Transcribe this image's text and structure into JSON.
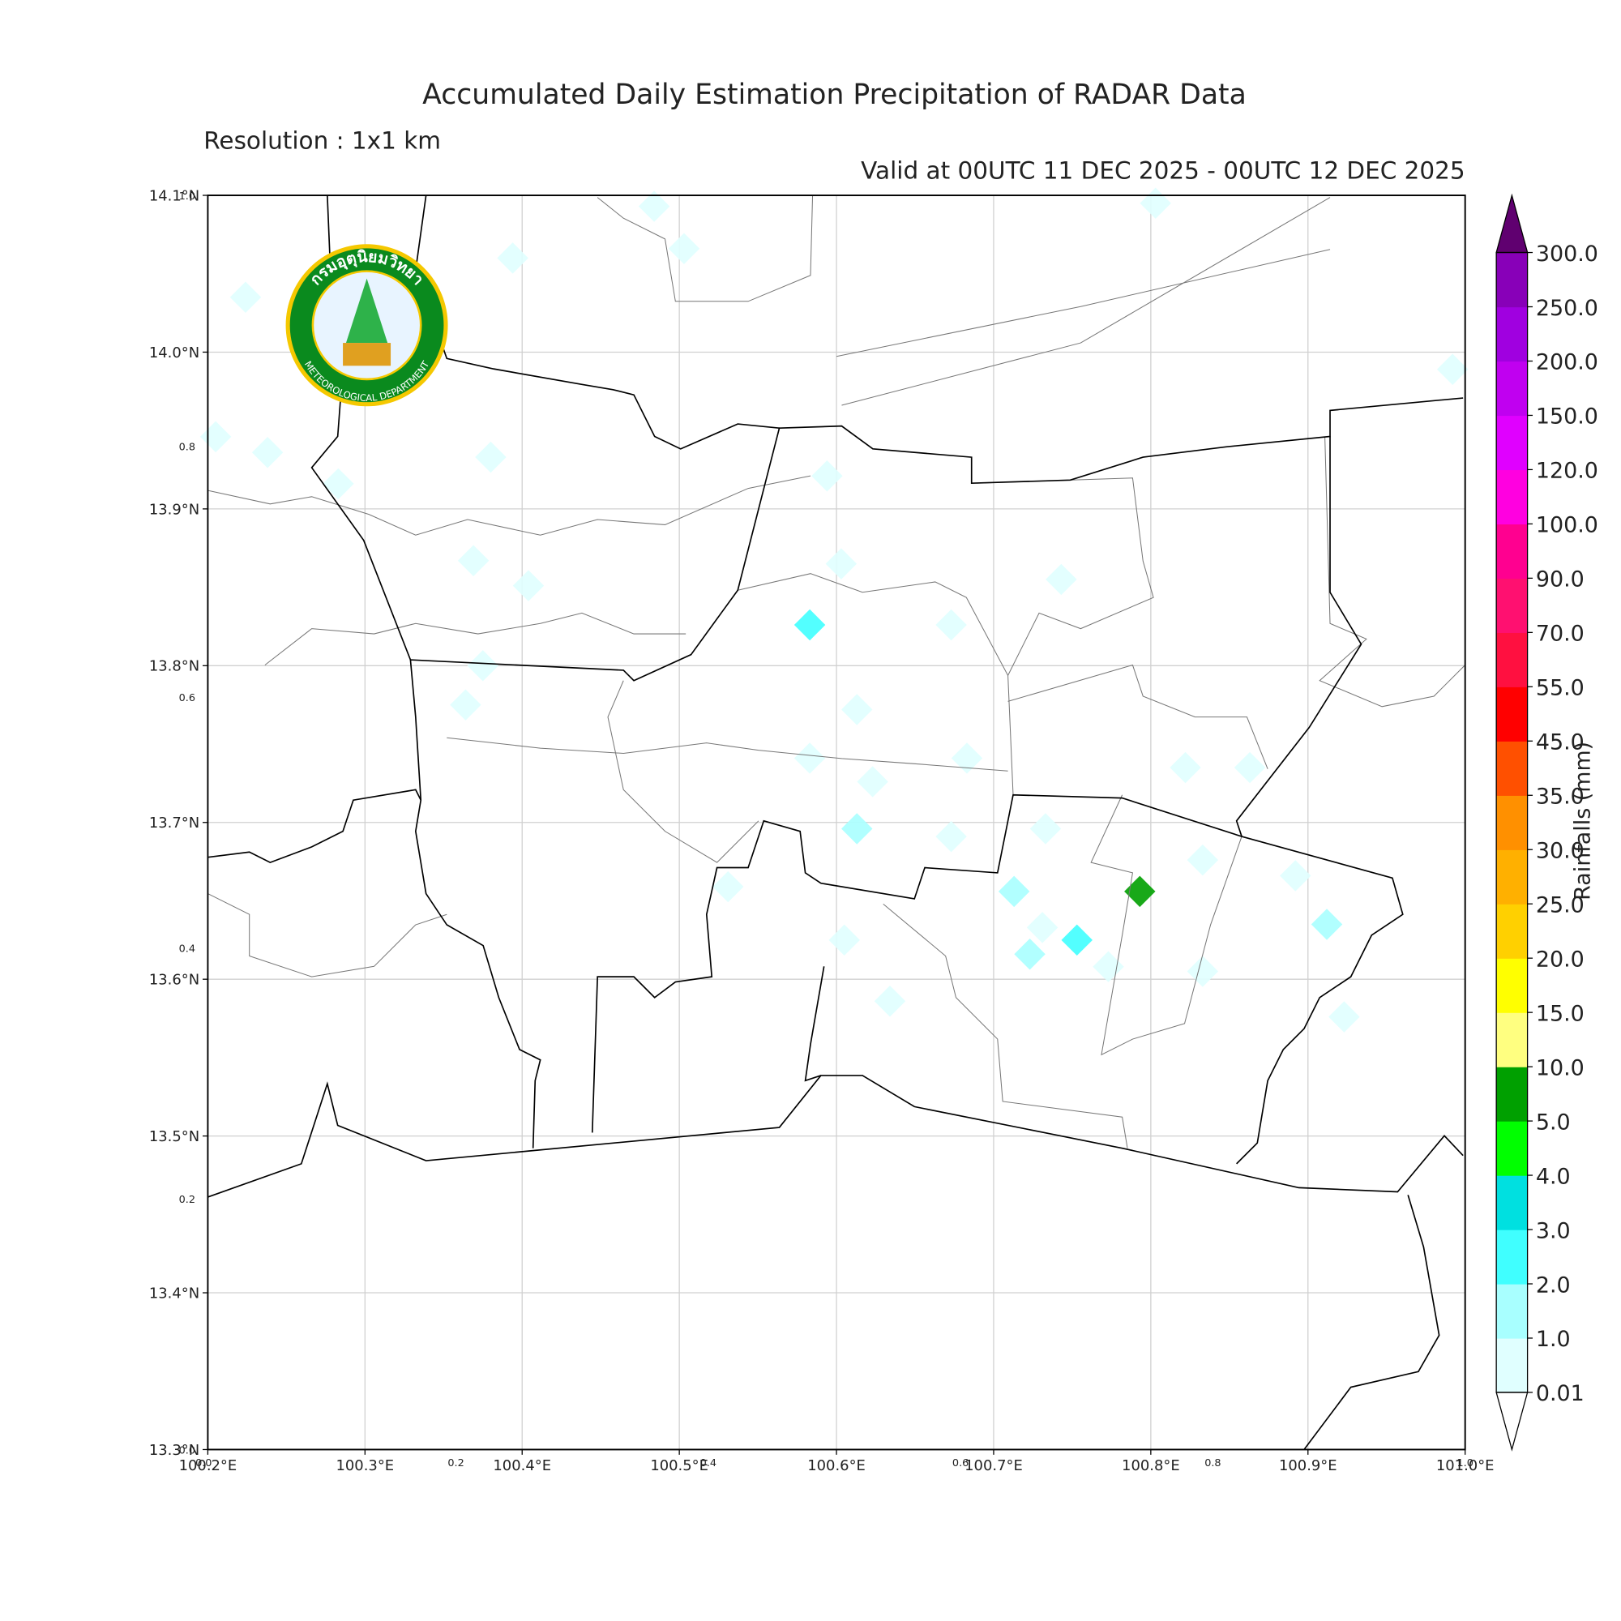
{
  "header": {
    "title": "Accumulated Daily Estimation Precipitation of RADAR Data",
    "resolution": "Resolution : 1x1 km",
    "valid": "Valid at 00UTC 11 DEC 2025 - 00UTC 12 DEC 2025"
  },
  "logo": {
    "thai": "กรมอุตุนิยมวิทยา",
    "english": "METEOROLOGICAL DEPARTMENT"
  },
  "map": {
    "xlim": [
      100.2,
      101.0
    ],
    "ylim": [
      13.3,
      14.1
    ],
    "xticks": [
      {
        "value": 100.2,
        "label": "100.2°E"
      },
      {
        "value": 100.3,
        "label": "100.3°E"
      },
      {
        "value": 100.4,
        "label": "100.4°E"
      },
      {
        "value": 100.5,
        "label": "100.5°E"
      },
      {
        "value": 100.6,
        "label": "100.6°E"
      },
      {
        "value": 100.7,
        "label": "100.7°E"
      },
      {
        "value": 100.8,
        "label": "100.8°E"
      },
      {
        "value": 100.9,
        "label": "100.9°E"
      },
      {
        "value": 101.0,
        "label": "101.0°E"
      }
    ],
    "yticks": [
      {
        "value": 13.3,
        "label": "13.3°N"
      },
      {
        "value": 13.4,
        "label": "13.4°N"
      },
      {
        "value": 13.5,
        "label": "13.5°N"
      },
      {
        "value": 13.6,
        "label": "13.6°N"
      },
      {
        "value": 13.7,
        "label": "13.7°N"
      },
      {
        "value": 13.8,
        "label": "13.8°N"
      },
      {
        "value": 13.9,
        "label": "13.9°N"
      },
      {
        "value": 14.0,
        "label": "14.0°N"
      },
      {
        "value": 14.1,
        "label": "14.1°N"
      }
    ],
    "grid": true,
    "overlay_ticks": [
      {
        "value": 0,
        "label": "0.0"
      },
      0.2,
      0.4,
      0.6,
      0.8,
      {
        "value": 1,
        "label": "1.0"
      }
    ],
    "rain_cells": [
      {
        "lon": 100.394,
        "lat": 14.06,
        "value": 0.5
      },
      {
        "lon": 100.224,
        "lat": 14.035,
        "value": 0.5
      },
      {
        "lon": 100.484,
        "lat": 14.093,
        "value": 0.5
      },
      {
        "lon": 100.503,
        "lat": 14.066,
        "value": 0.5
      },
      {
        "lon": 100.238,
        "lat": 13.936,
        "value": 0.5
      },
      {
        "lon": 100.38,
        "lat": 13.933,
        "value": 0.5
      },
      {
        "lon": 100.205,
        "lat": 13.946,
        "value": 0.5
      },
      {
        "lon": 100.283,
        "lat": 13.916,
        "value": 0.5
      },
      {
        "lon": 100.369,
        "lat": 13.867,
        "value": 0.5
      },
      {
        "lon": 100.404,
        "lat": 13.851,
        "value": 0.5
      },
      {
        "lon": 100.594,
        "lat": 13.921,
        "value": 0.5
      },
      {
        "lon": 100.603,
        "lat": 13.865,
        "value": 0.5
      },
      {
        "lon": 100.743,
        "lat": 13.855,
        "value": 0.5
      },
      {
        "lon": 100.583,
        "lat": 13.826,
        "value": 2.5
      },
      {
        "lon": 100.673,
        "lat": 13.826,
        "value": 0.5
      },
      {
        "lon": 100.375,
        "lat": 13.8,
        "value": 0.5
      },
      {
        "lon": 100.364,
        "lat": 13.775,
        "value": 0.5
      },
      {
        "lon": 100.613,
        "lat": 13.772,
        "value": 0.5
      },
      {
        "lon": 100.583,
        "lat": 13.741,
        "value": 0.5
      },
      {
        "lon": 100.683,
        "lat": 13.741,
        "value": 0.5
      },
      {
        "lon": 100.623,
        "lat": 13.726,
        "value": 0.5
      },
      {
        "lon": 100.822,
        "lat": 13.735,
        "value": 0.5
      },
      {
        "lon": 100.863,
        "lat": 13.735,
        "value": 0.5
      },
      {
        "lon": 100.733,
        "lat": 13.696,
        "value": 0.5
      },
      {
        "lon": 100.673,
        "lat": 13.691,
        "value": 0.5
      },
      {
        "lon": 100.613,
        "lat": 13.696,
        "value": 1.5
      },
      {
        "lon": 100.793,
        "lat": 13.656,
        "value": 7
      },
      {
        "lon": 100.833,
        "lat": 13.676,
        "value": 0.5
      },
      {
        "lon": 100.713,
        "lat": 13.656,
        "value": 1.5
      },
      {
        "lon": 100.892,
        "lat": 13.666,
        "value": 0.5
      },
      {
        "lon": 100.531,
        "lat": 13.659,
        "value": 0.5
      },
      {
        "lon": 100.753,
        "lat": 13.625,
        "value": 2.5
      },
      {
        "lon": 100.731,
        "lat": 13.633,
        "value": 0.5
      },
      {
        "lon": 100.605,
        "lat": 13.625,
        "value": 0.5
      },
      {
        "lon": 100.773,
        "lat": 13.608,
        "value": 0.5
      },
      {
        "lon": 100.833,
        "lat": 13.605,
        "value": 0.5
      },
      {
        "lon": 100.634,
        "lat": 13.586,
        "value": 0.5
      },
      {
        "lon": 100.923,
        "lat": 13.576,
        "value": 0.5
      },
      {
        "lon": 100.992,
        "lat": 13.989,
        "value": 0.5
      },
      {
        "lon": 100.803,
        "lat": 14.095,
        "value": 0.5
      },
      {
        "lon": 100.912,
        "lat": 13.635,
        "value": 1.5
      },
      {
        "lon": 100.723,
        "lat": 13.616,
        "value": 1.5
      }
    ]
  },
  "colorbar": {
    "label": "Rainfalls (mm)",
    "levels": [
      0.01,
      {
        "value": 1,
        "label": "1.0"
      },
      {
        "value": 2,
        "label": "2.0"
      },
      {
        "value": 3,
        "label": "3.0"
      },
      {
        "value": 4,
        "label": "4.0"
      },
      {
        "value": 5,
        "label": "5.0"
      },
      {
        "value": 10,
        "label": "10.0"
      },
      {
        "value": 15,
        "label": "15.0"
      },
      {
        "value": 20,
        "label": "20.0"
      },
      {
        "value": 25,
        "label": "25.0"
      },
      {
        "value": 30,
        "label": "30.0"
      },
      {
        "value": 35,
        "label": "35.0"
      },
      {
        "value": 45,
        "label": "45.0"
      },
      {
        "value": 55,
        "label": "55.0"
      },
      {
        "value": 70,
        "label": "70.0"
      },
      {
        "value": 90,
        "label": "90.0"
      },
      {
        "value": 100,
        "label": "100.0"
      },
      {
        "value": 120,
        "label": "120.0"
      },
      {
        "value": 150,
        "label": "150.0"
      },
      {
        "value": 200,
        "label": "200.0"
      },
      {
        "value": 250,
        "label": "250.0"
      },
      {
        "value": 300,
        "label": "300.0"
      }
    ],
    "colors": [
      "#e0ffff",
      "#a8ffff",
      "#40ffff",
      "#00e0e0",
      "#00ff00",
      "#00a000",
      "#ffff80",
      "#ffff00",
      "#ffd000",
      "#ffb000",
      "#ff9000",
      "#ff5000",
      "#ff0000",
      "#ff1040",
      "#ff1070",
      "#ff0090",
      "#ff00e0",
      "#e000ff",
      "#c000f0",
      "#a000e0",
      "#8800b8"
    ],
    "over_color": "#600070",
    "under_color": "#ffffff"
  }
}
